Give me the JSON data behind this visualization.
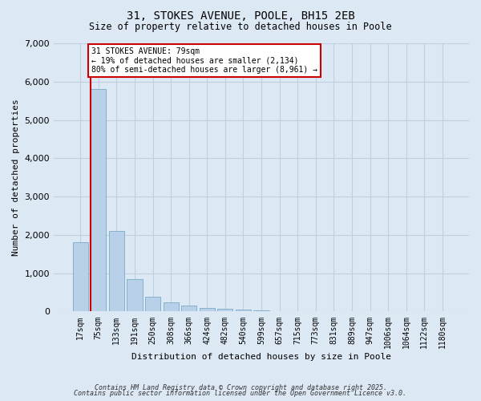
{
  "title1": "31, STOKES AVENUE, POOLE, BH15 2EB",
  "title2": "Size of property relative to detached houses in Poole",
  "xlabel": "Distribution of detached houses by size in Poole",
  "ylabel": "Number of detached properties",
  "categories": [
    "17sqm",
    "75sqm",
    "133sqm",
    "191sqm",
    "250sqm",
    "308sqm",
    "366sqm",
    "424sqm",
    "482sqm",
    "540sqm",
    "599sqm",
    "657sqm",
    "715sqm",
    "773sqm",
    "831sqm",
    "889sqm",
    "947sqm",
    "1006sqm",
    "1064sqm",
    "1122sqm",
    "1180sqm"
  ],
  "values": [
    1800,
    5800,
    2100,
    850,
    380,
    240,
    150,
    100,
    80,
    50,
    30,
    10,
    5,
    3,
    2,
    1,
    1,
    0,
    0,
    0,
    0
  ],
  "bar_color": "#b8d0e8",
  "bar_edge_color": "#7aaac8",
  "vline_x_index": 1,
  "annotation_line1": "31 STOKES AVENUE: 79sqm",
  "annotation_line2": "← 19% of detached houses are smaller (2,134)",
  "annotation_line3": "80% of semi-detached houses are larger (8,961) →",
  "vline_color": "#cc0000",
  "annotation_box_color": "#ffffff",
  "annotation_box_edge": "#cc0000",
  "grid_color": "#c0d0e0",
  "bg_color": "#dce8f4",
  "ylim": [
    0,
    7000
  ],
  "yticks": [
    0,
    1000,
    2000,
    3000,
    4000,
    5000,
    6000,
    7000
  ],
  "footer1": "Contains HM Land Registry data © Crown copyright and database right 2025.",
  "footer2": "Contains public sector information licensed under the Open Government Licence v3.0."
}
